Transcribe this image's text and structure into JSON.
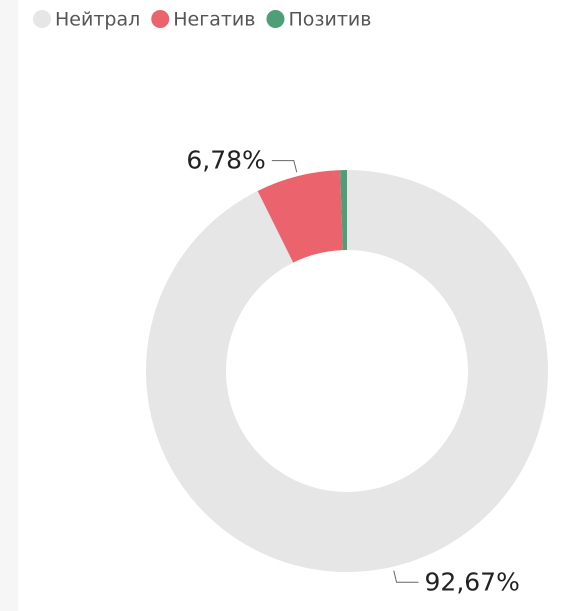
{
  "chart_data": {
    "type": "donut",
    "categories": [
      "Нейтрал",
      "Негатив",
      "Позитив"
    ],
    "values": [
      92.67,
      6.78,
      0.55
    ],
    "value_labels": [
      "92,67%",
      "6,78%",
      null
    ],
    "colors": [
      "#e6e6e6",
      "#eb636c",
      "#4e9f78"
    ],
    "legend": "top-left"
  }
}
